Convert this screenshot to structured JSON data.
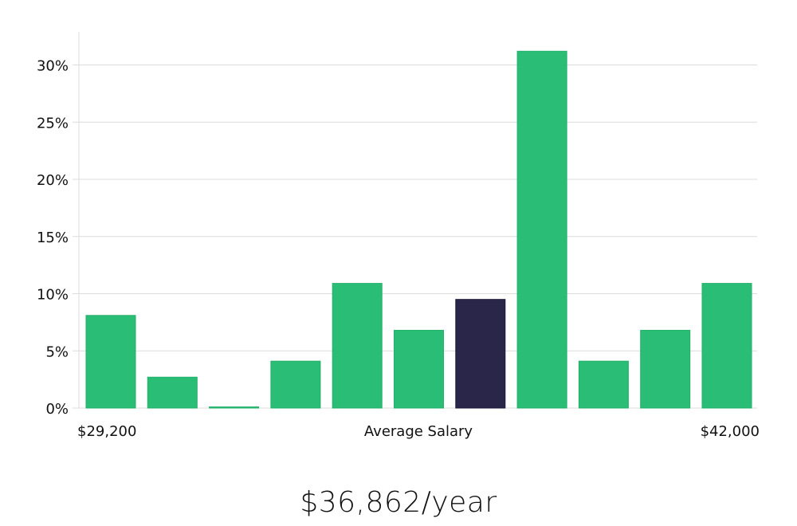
{
  "chart_data": {
    "type": "bar",
    "title": "",
    "xlabel": "Average Salary",
    "x_min_label": "$29,200",
    "x_max_label": "$42,000",
    "ylabel": "",
    "ylim": [
      0,
      33
    ],
    "yticks": [
      0,
      5,
      10,
      15,
      20,
      25,
      30
    ],
    "ytick_labels": [
      "0%",
      "5%",
      "10%",
      "15%",
      "20%",
      "25%",
      "30%"
    ],
    "grid": true,
    "values": [
      8.1,
      2.7,
      0.1,
      4.1,
      10.9,
      6.8,
      9.5,
      31.2,
      4.1,
      6.8,
      10.9
    ],
    "highlight_index": 6,
    "colors": {
      "bar": "#2abd76",
      "bar_stroke": "#22b06a",
      "highlight": "#29264a",
      "highlight_stroke": "#1c1a3a"
    }
  },
  "salary_text": "$36,862/year"
}
